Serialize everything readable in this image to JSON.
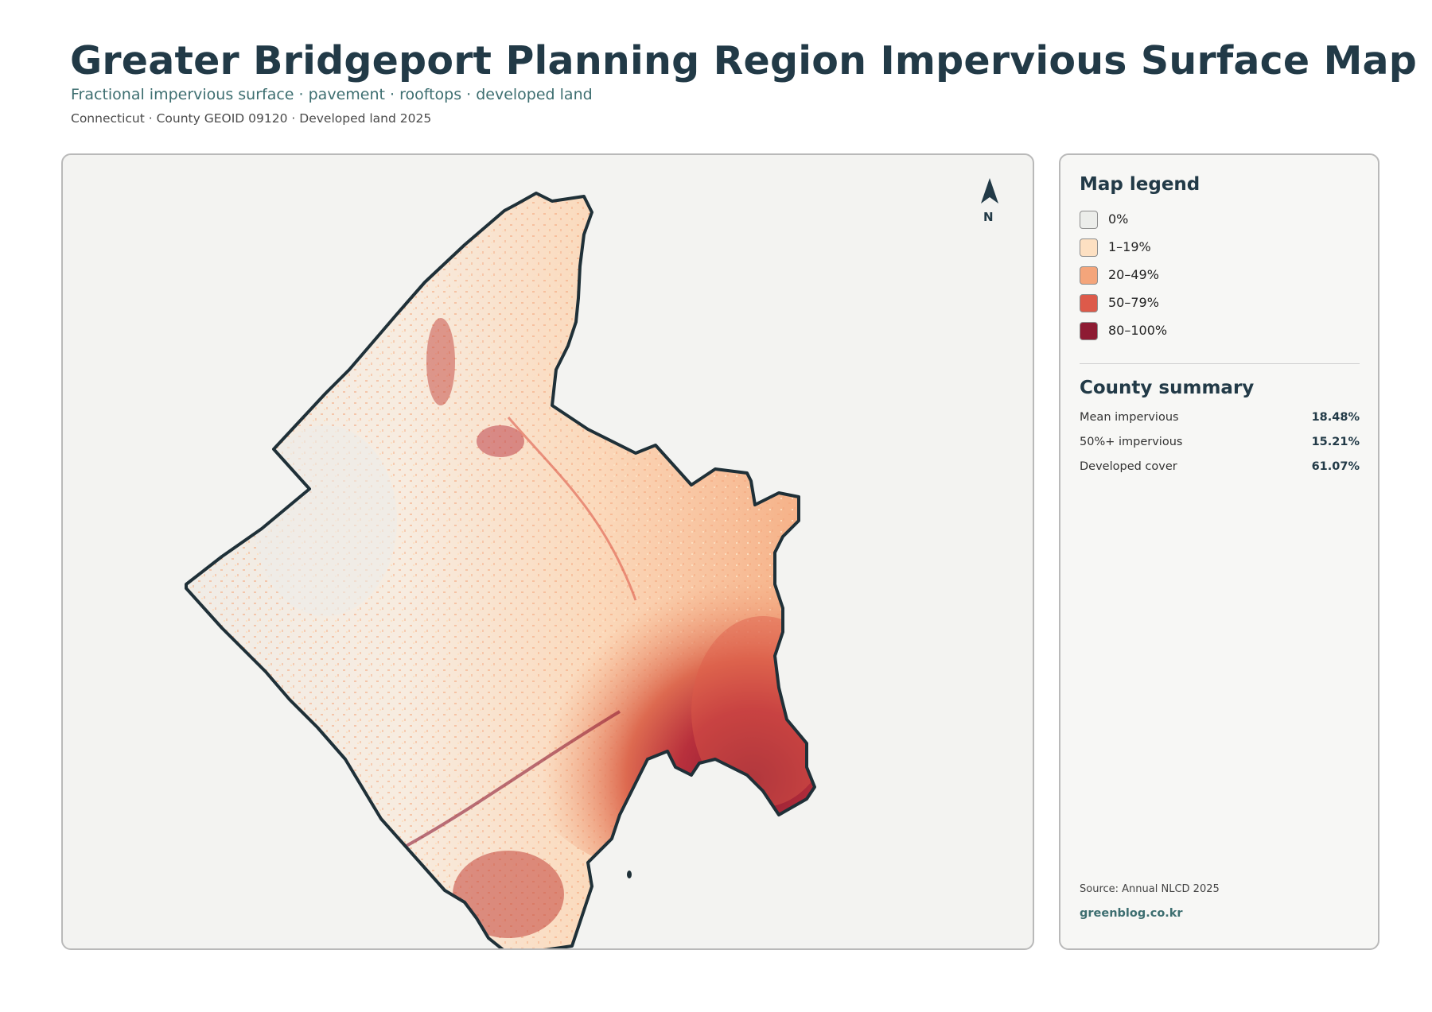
{
  "header": {
    "title": "Greater Bridgeport Planning Region Impervious Surface Map",
    "subtitle": "Fractional impervious surface · pavement · rooftops · developed land",
    "meta": "Connecticut · County GEOID 09120 · Developed land 2025"
  },
  "map": {
    "north_label": "N"
  },
  "legend": {
    "title": "Map legend",
    "items": [
      {
        "label": "0%",
        "color": "#ecedea"
      },
      {
        "label": "1–19%",
        "color": "#fde0c2"
      },
      {
        "label": "20–49%",
        "color": "#f4a57b"
      },
      {
        "label": "50–79%",
        "color": "#dd5a4a"
      },
      {
        "label": "80–100%",
        "color": "#8e1b33"
      }
    ]
  },
  "summary": {
    "title": "County summary",
    "rows": [
      {
        "label": "Mean impervious",
        "value": "18.48%"
      },
      {
        "label": "50%+ impervious",
        "value": "15.21%"
      },
      {
        "label": "Developed cover",
        "value": "61.07%"
      }
    ]
  },
  "footer": {
    "source": "Source: Annual NLCD 2025",
    "site": "greenblog.co.kr"
  }
}
